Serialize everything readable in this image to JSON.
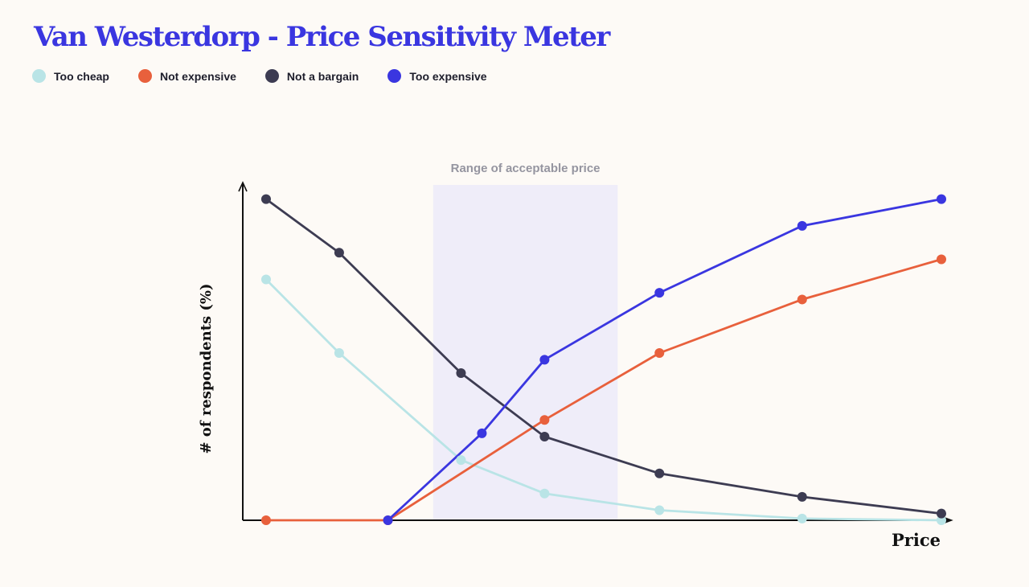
{
  "title": "Van Westerdorp - Price Sensitivity Meter",
  "colors": {
    "background": "#fdfaf6",
    "title": "#3a36e0",
    "band": "#efedf9",
    "band_label": "#9595a0",
    "axis": "#111111"
  },
  "chart_data": {
    "type": "line",
    "title": "Van Westerdorp - Price Sensitivity Meter",
    "xlabel": "Price",
    "ylabel": "# of respondents (%)",
    "xlim": [
      0,
      100
    ],
    "ylim": [
      0,
      100
    ],
    "grid": false,
    "legend_position": "top-left",
    "band": {
      "label": "Range of acceptable price",
      "x_start": 27,
      "x_end": 53.5
    },
    "series": [
      {
        "name": "Too cheap",
        "color": "#b9e4e6",
        "x": [
          3,
          13.5,
          31,
          43,
          59.5,
          80,
          100
        ],
        "y": [
          72,
          50,
          18,
          8,
          3,
          0.5,
          0
        ]
      },
      {
        "name": "Not expensive",
        "color": "#e8603c",
        "x": [
          3,
          20.5,
          43,
          59.5,
          80,
          100
        ],
        "y": [
          0,
          0,
          30,
          50,
          66,
          78
        ]
      },
      {
        "name": "Not a bargain",
        "color": "#3d3c52",
        "x": [
          3,
          13.5,
          31,
          43,
          59.5,
          80,
          100
        ],
        "y": [
          96,
          80,
          44,
          25,
          14,
          7,
          2
        ]
      },
      {
        "name": "Too expensive",
        "color": "#3a36e0",
        "x": [
          20.5,
          34,
          43,
          59.5,
          80,
          100
        ],
        "y": [
          0,
          26,
          48,
          68,
          88,
          96
        ]
      }
    ]
  }
}
